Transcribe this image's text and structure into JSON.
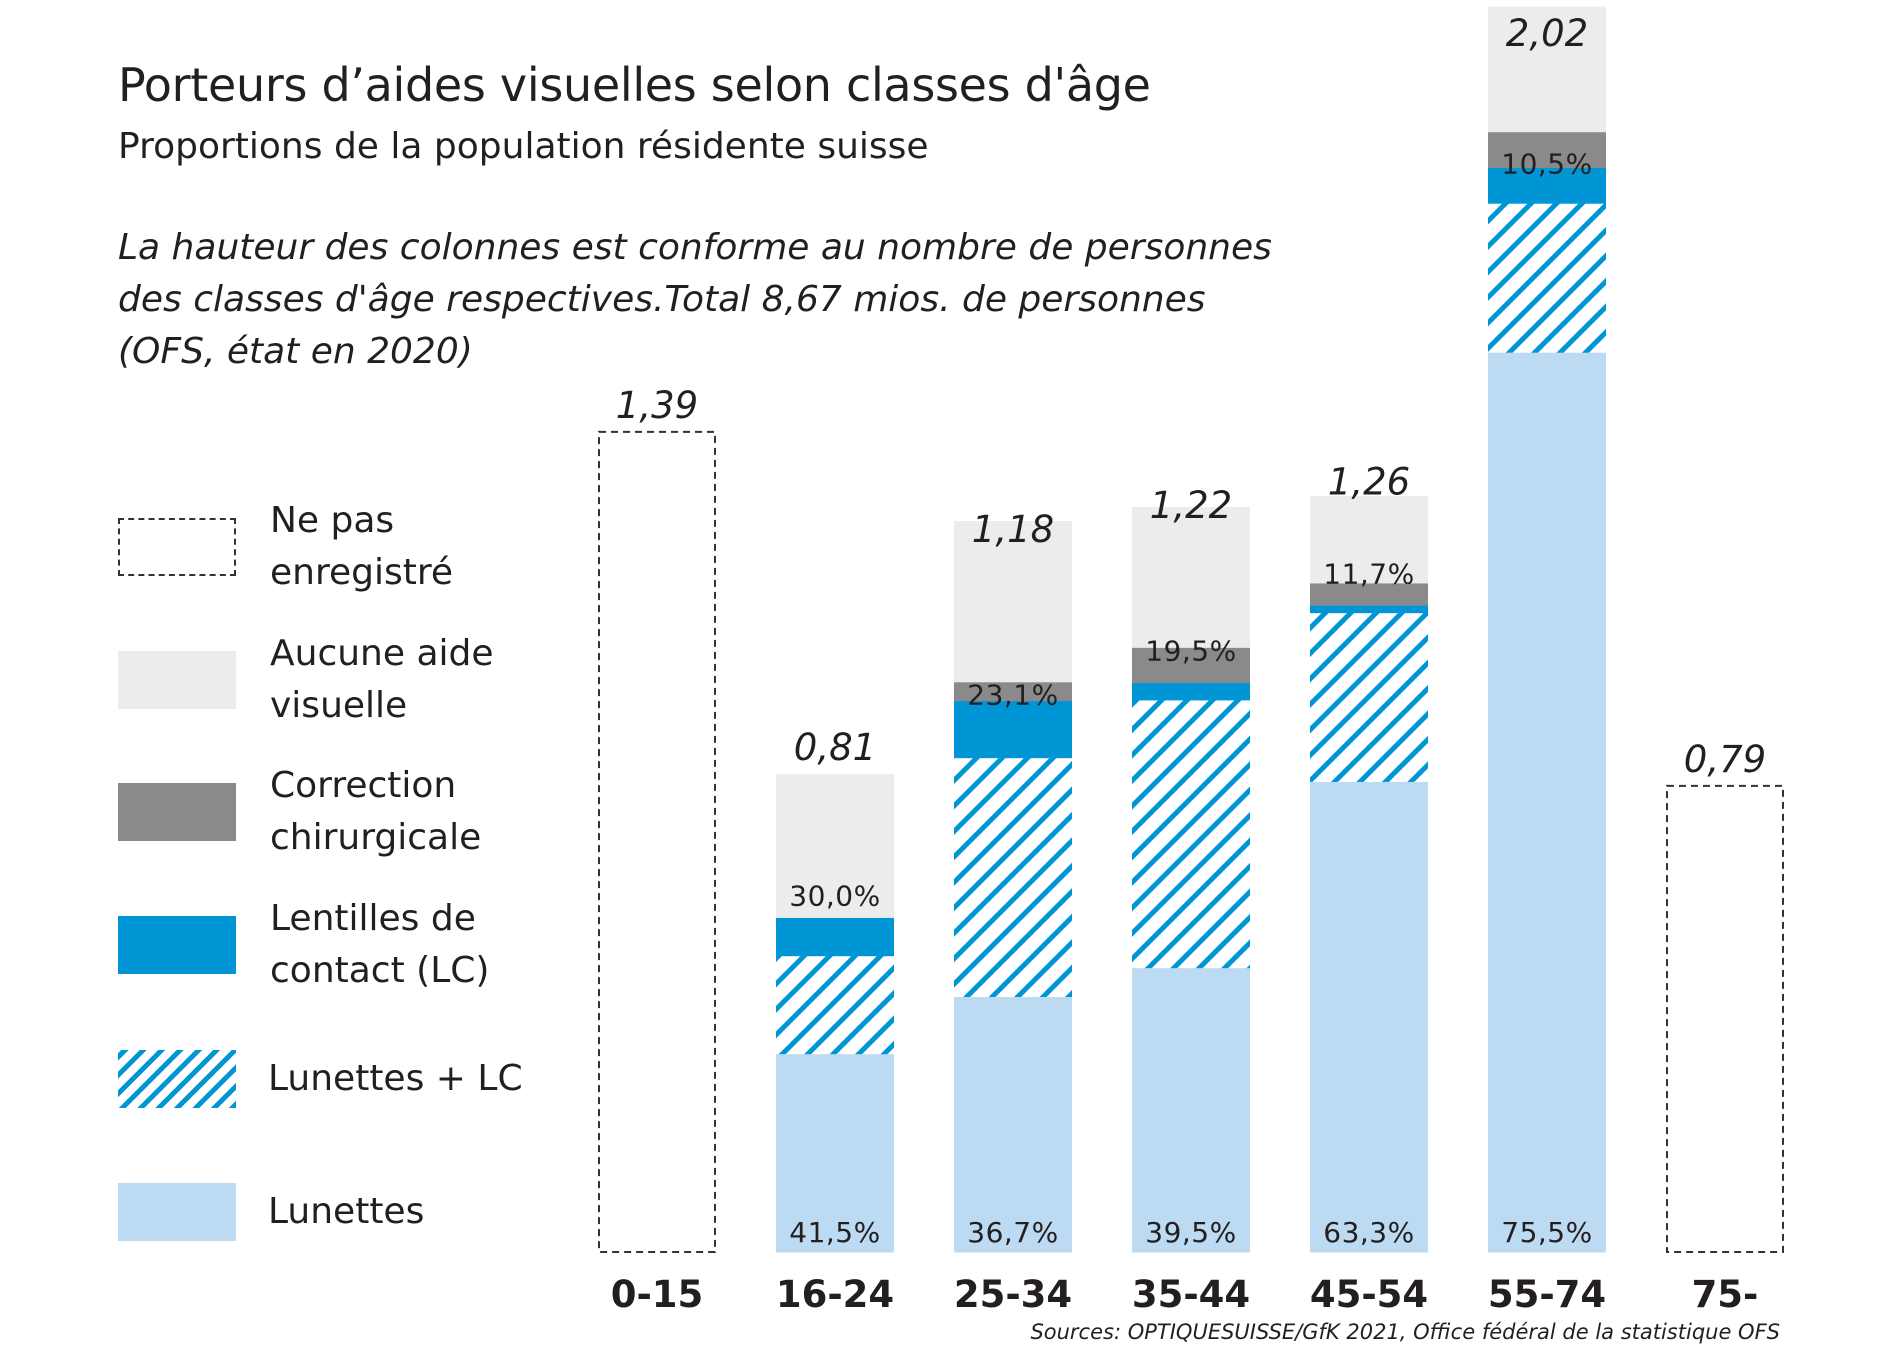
{
  "chart_data": {
    "type": "bar",
    "title": "Porteurs d’aides visuelles selon classes d'âge",
    "subtitle": "Proportions de la population résidente suisse",
    "note_lines": [
      "La hauteur des colonnes est conforme au nombre de personnes",
      "des classes d'âge respectives.Total 8,67 mios. de personnes",
      "(OFS, état en 2020)"
    ],
    "sources": "Sources: OPTIQUESUISSE/GfK 2021, Office fédéral de la statistique OFS",
    "categories": [
      "0-15",
      "16-24",
      "25-34",
      "35-44",
      "45-54",
      "55-74",
      "75-"
    ],
    "totals": [
      1.39,
      0.81,
      1.18,
      1.22,
      1.26,
      2.02,
      0.79
    ],
    "total_labels": [
      "1,39",
      "0,81",
      "1,18",
      "1,22",
      "1,26",
      "2,02",
      "0,79"
    ],
    "unit": "mios. de personnes",
    "series": [
      {
        "name": "Lunettes",
        "key": "lunettes",
        "color": "#bcdbf3",
        "pattern": "solid",
        "values": [
          null,
          0.415,
          0.367,
          0.395,
          0.633,
          0.755,
          null
        ]
      },
      {
        "name": "Lunettes + LC",
        "key": "lunettes_lc",
        "color": "#0096d6",
        "pattern": "hatch",
        "values": [
          null,
          0.205,
          0.343,
          0.372,
          0.227,
          0.125,
          null
        ]
      },
      {
        "name": "Lentilles de contact (LC)",
        "key": "lc",
        "color": "#0096d6",
        "pattern": "solid",
        "values": [
          null,
          0.08,
          0.082,
          0.024,
          0.01,
          0.03,
          null
        ]
      },
      {
        "name": "Correction chirurgicale",
        "key": "chirurgicale",
        "color": "#8a8a8a",
        "pattern": "solid",
        "values": [
          null,
          0.0,
          0.027,
          0.049,
          0.03,
          0.03,
          null
        ]
      },
      {
        "name": "Aucune aide visuelle",
        "key": "aucune",
        "color": "#ebeceb",
        "pattern": "solid",
        "values": [
          null,
          0.3,
          0.231,
          0.195,
          0.117,
          0.105,
          null
        ]
      }
    ],
    "not_recorded": {
      "name": "Ne pas enregistré",
      "categories": [
        "0-15",
        "75-"
      ]
    },
    "segment_labels": {
      "lunettes": [
        "",
        "41,5%",
        "36,7%",
        "39,5%",
        "63,3%",
        "75,5%",
        ""
      ],
      "aucune": [
        "",
        "30,0%",
        "23,1%",
        "19,5%",
        "11,7%",
        "10,5%",
        ""
      ]
    },
    "legend": {
      "placement": "left",
      "items": [
        {
          "key": "nr",
          "lines": [
            "Ne pas",
            "enregistré"
          ],
          "color": "#ffffff",
          "pattern": "dashed"
        },
        {
          "key": "aucune",
          "lines": [
            "Aucune aide",
            "visuelle"
          ],
          "color": "#ebeceb",
          "pattern": "solid"
        },
        {
          "key": "chirurgicale",
          "lines": [
            "Correction",
            "chirurgicale"
          ],
          "color": "#8a8a8a",
          "pattern": "solid"
        },
        {
          "key": "lc",
          "lines": [
            "Lentilles de",
            "contact (LC)"
          ],
          "color": "#0096d6",
          "pattern": "solid"
        },
        {
          "key": "lunettes_lc",
          "lines": [
            "Lunettes + LC"
          ],
          "color": "#0096d6",
          "pattern": "hatch"
        },
        {
          "key": "lunettes",
          "lines": [
            "Lunettes"
          ],
          "color": "#bcdbf3",
          "pattern": "solid"
        }
      ]
    },
    "grid": false
  }
}
